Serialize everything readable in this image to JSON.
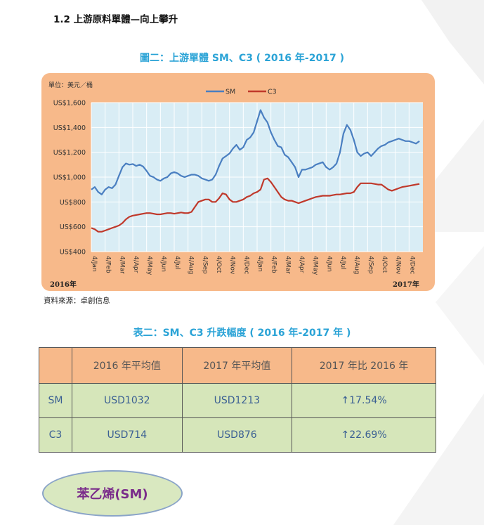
{
  "section": {
    "heading": "1.2  上游原料單體—向上攀升"
  },
  "figure": {
    "caption": "圖二：上游單體 SM、C3 ( 2016 年-2017 )",
    "unit": "單位：美元／桶",
    "year_start": "2016年",
    "year_end": "2017年",
    "source": "資料來源：卓創信息"
  },
  "chart_data": {
    "type": "line",
    "title": "",
    "unit_label": "單位：美元／桶",
    "legend": {
      "placement": "top-center",
      "entries": [
        "SM",
        "C3"
      ]
    },
    "grid": true,
    "ylim": [
      400,
      1600
    ],
    "y_ticks": [
      "US$400",
      "US$600",
      "US$800",
      "US$1,000",
      "US$1,200",
      "US$1,400",
      "US$1,600"
    ],
    "y_tick_values": [
      400,
      600,
      800,
      1000,
      1200,
      1400,
      1600
    ],
    "x_ticks": [
      "4/Jan",
      "4/Feb",
      "4/Mar",
      "4/Apr",
      "4/May",
      "4/Jun",
      "4/Jul",
      "4/Aug",
      "4/Sep",
      "4/Oct",
      "4/Nov",
      "4/Dec",
      "4/Jan",
      "4/Feb",
      "4/Mar",
      "4/Apr",
      "4/May",
      "4/Jun",
      "4/Jul",
      "4/Aug",
      "4/Sep",
      "4/Oct",
      "4/Nov",
      "4/Dec"
    ],
    "x_start_label": "2016年",
    "x_end_label": "2017年",
    "colors": {
      "SM": "#4a7fc1",
      "C3": "#c0392b",
      "plot_bg": "#d9edf5",
      "panel_bg": "#f7b98a"
    },
    "x_months": [
      0,
      0.25,
      0.5,
      0.75,
      1,
      1.25,
      1.5,
      1.75,
      2,
      2.25,
      2.5,
      2.75,
      3,
      3.25,
      3.5,
      3.75,
      4,
      4.25,
      4.5,
      4.75,
      5,
      5.25,
      5.5,
      5.75,
      6,
      6.25,
      6.5,
      6.75,
      7,
      7.25,
      7.5,
      7.75,
      8,
      8.25,
      8.5,
      8.75,
      9,
      9.25,
      9.5,
      9.75,
      10,
      10.25,
      10.5,
      10.75,
      11,
      11.25,
      11.5,
      11.75,
      12,
      12.25,
      12.5,
      12.75,
      13,
      13.25,
      13.5,
      13.75,
      14,
      14.25,
      14.5,
      14.75,
      15,
      15.25,
      15.5,
      15.75,
      16,
      16.25,
      16.5,
      16.75,
      17,
      17.25,
      17.5,
      17.75,
      18,
      18.25,
      18.5,
      18.75,
      19,
      19.25,
      19.5,
      19.75,
      20,
      20.25,
      20.5,
      20.75,
      21,
      21.25,
      21.5,
      21.75,
      22,
      22.25,
      22.5,
      22.75,
      23,
      23.25,
      23.5,
      23.75
    ],
    "series": [
      {
        "name": "SM",
        "values": [
          900,
          920,
          880,
          860,
          900,
          920,
          910,
          940,
          1010,
          1080,
          1110,
          1100,
          1105,
          1090,
          1100,
          1085,
          1050,
          1010,
          1000,
          980,
          970,
          990,
          1000,
          1030,
          1040,
          1030,
          1010,
          1000,
          1010,
          1020,
          1020,
          1010,
          990,
          980,
          970,
          980,
          1020,
          1090,
          1150,
          1170,
          1190,
          1230,
          1260,
          1220,
          1240,
          1300,
          1320,
          1360,
          1450,
          1540,
          1480,
          1440,
          1360,
          1300,
          1250,
          1240,
          1180,
          1160,
          1120,
          1080,
          1000,
          1060,
          1060,
          1070,
          1080,
          1100,
          1110,
          1120,
          1080,
          1060,
          1080,
          1110,
          1200,
          1350,
          1420,
          1380,
          1300,
          1200,
          1170,
          1190,
          1200,
          1170,
          1200,
          1230,
          1250,
          1260,
          1280,
          1290,
          1300,
          1310,
          1300,
          1290,
          1290,
          1280,
          1270,
          1290
        ]
      },
      {
        "name": "C3",
        "values": [
          590,
          580,
          560,
          560,
          570,
          580,
          590,
          600,
          610,
          630,
          660,
          680,
          690,
          695,
          700,
          705,
          710,
          710,
          705,
          700,
          700,
          705,
          710,
          710,
          705,
          710,
          715,
          710,
          710,
          720,
          760,
          800,
          810,
          820,
          820,
          800,
          800,
          830,
          870,
          860,
          820,
          800,
          800,
          810,
          820,
          840,
          850,
          870,
          880,
          900,
          980,
          990,
          960,
          920,
          880,
          840,
          820,
          810,
          810,
          800,
          790,
          800,
          810,
          820,
          830,
          840,
          845,
          850,
          850,
          850,
          855,
          860,
          860,
          865,
          870,
          870,
          880,
          920,
          950,
          950,
          950,
          950,
          945,
          940,
          940,
          920,
          900,
          890,
          900,
          910,
          920,
          925,
          930,
          935,
          940,
          945
        ]
      }
    ]
  },
  "table": {
    "caption": "表二：SM、C3 升跌幅度 ( 2016 年-2017 年 )",
    "headers": [
      "",
      "2016 年平均值",
      "2017 年平均值",
      "2017 年比 2016 年"
    ],
    "rows": [
      {
        "label": "SM",
        "avg2016": "USD1032",
        "avg2017": "USD1213",
        "change": "↑17.54%"
      },
      {
        "label": "C3",
        "avg2016": "USD714",
        "avg2017": "USD876",
        "change": "↑22.69%"
      }
    ]
  },
  "badge": {
    "label": "苯乙烯(SM)"
  }
}
